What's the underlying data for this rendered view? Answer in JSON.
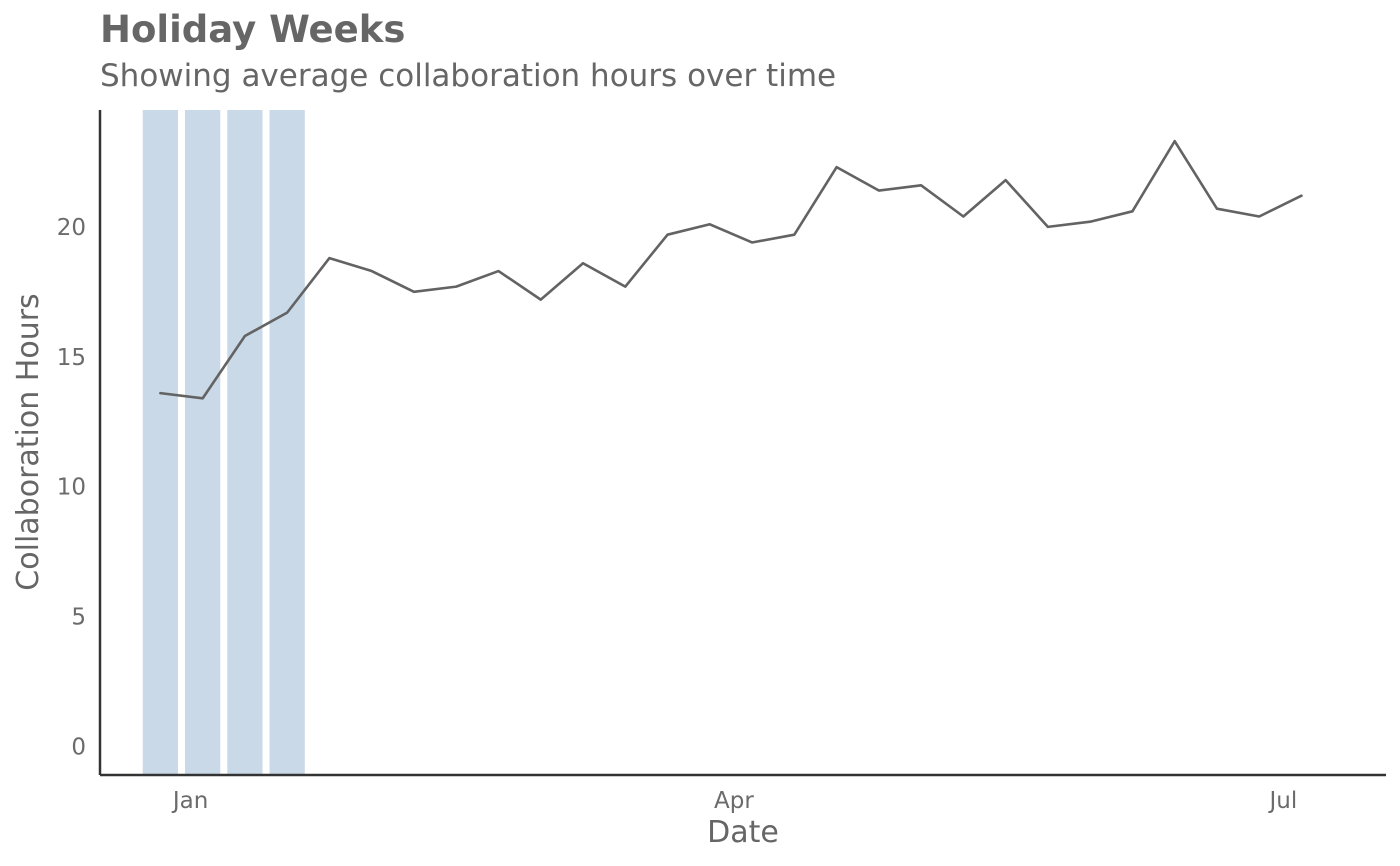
{
  "header": {
    "title": "Holiday Weeks",
    "subtitle": "Showing average collaboration hours over time"
  },
  "colors": {
    "line": "#636363",
    "holiday_band": "#c9d9e8",
    "axis": "#333333",
    "text": "#666666"
  },
  "chart_data": {
    "type": "line",
    "title": "Holiday Weeks",
    "subtitle": "Showing average collaboration hours over time",
    "xlabel": "Date",
    "ylabel": "Collaboration Hours",
    "x_tick_labels": [
      {
        "label": "Jan",
        "date": "2021-01-01"
      },
      {
        "label": "Apr",
        "date": "2021-04-01"
      },
      {
        "label": "Jul",
        "date": "2021-07-01"
      }
    ],
    "y_ticks": [
      0,
      5,
      10,
      15,
      20
    ],
    "ylim": [
      -1.1,
      24.5
    ],
    "xlim": [
      "2020-12-17",
      "2021-07-18"
    ],
    "grid": false,
    "series": [
      {
        "x": [
          "2020-12-27",
          "2021-01-03",
          "2021-01-10",
          "2021-01-17",
          "2021-01-24",
          "2021-01-31",
          "2021-02-07",
          "2021-02-14",
          "2021-02-21",
          "2021-02-28",
          "2021-03-07",
          "2021-03-14",
          "2021-03-21",
          "2021-03-28",
          "2021-04-04",
          "2021-04-11",
          "2021-04-18",
          "2021-04-25",
          "2021-05-02",
          "2021-05-09",
          "2021-05-16",
          "2021-05-23",
          "2021-05-30",
          "2021-06-06",
          "2021-06-13",
          "2021-06-20",
          "2021-06-27",
          "2021-07-04"
        ],
        "values": [
          13.6,
          13.4,
          15.8,
          16.7,
          18.8,
          18.3,
          17.5,
          17.7,
          18.3,
          17.2,
          18.6,
          17.7,
          19.7,
          20.1,
          19.4,
          19.7,
          22.3,
          21.4,
          21.6,
          20.4,
          21.8,
          20.0,
          20.2,
          20.6,
          23.3,
          20.7,
          20.4,
          21.2
        ]
      }
    ],
    "highlight_weeks": [
      "2020-12-27",
      "2021-01-03",
      "2021-01-10",
      "2021-01-17"
    ]
  }
}
